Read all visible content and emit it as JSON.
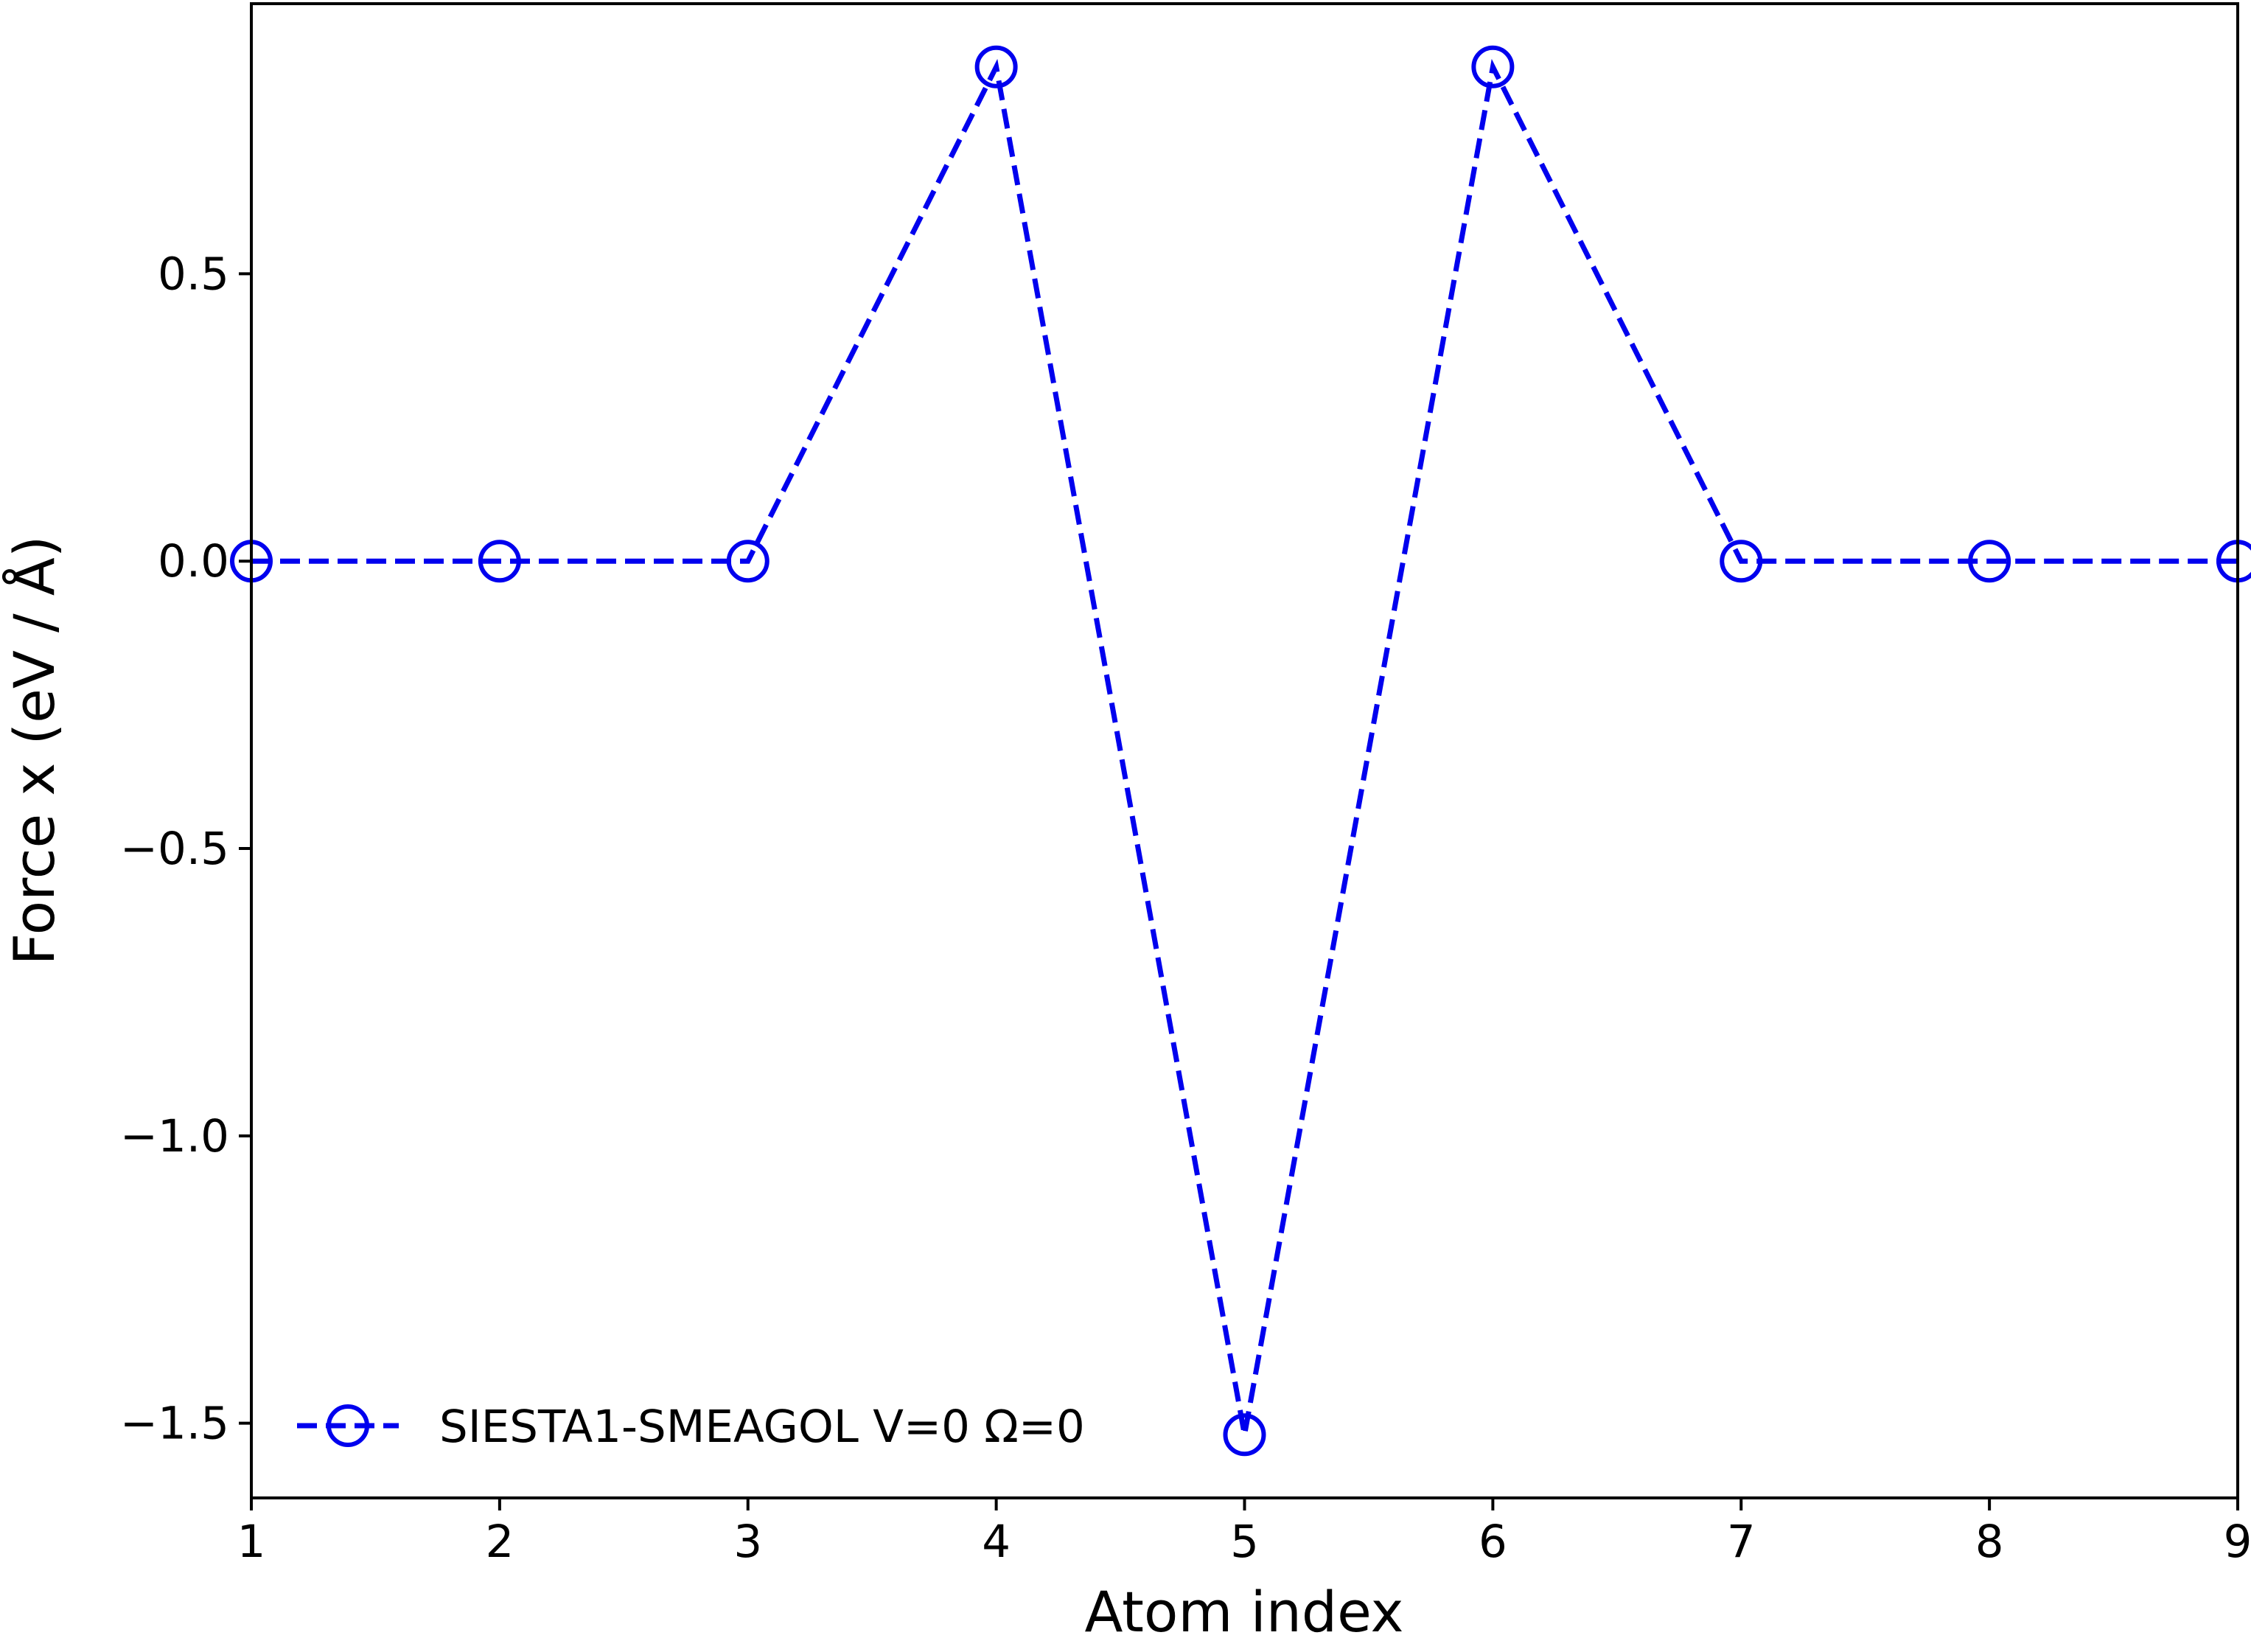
{
  "chart_data": {
    "type": "line",
    "title": "",
    "xlabel": "Atom index",
    "ylabel": "Force x (eV / Å)",
    "xlim": [
      1,
      9
    ],
    "ylim": [
      -1.63,
      0.97
    ],
    "xticks": [
      1,
      2,
      3,
      4,
      5,
      6,
      7,
      8,
      9
    ],
    "xtick_labels": [
      "1",
      "2",
      "3",
      "4",
      "5",
      "6",
      "7",
      "8",
      "9"
    ],
    "yticks": [
      0.5,
      0.0,
      -0.5,
      -1.0,
      -1.5
    ],
    "ytick_labels": [
      "0.5",
      "0.0",
      "−0.5",
      "−1.0",
      "−1.5"
    ],
    "grid": false,
    "legend_position": "lower-left",
    "series": [
      {
        "name": "SIESTA1-SMEAGOL V=0 Ω=0",
        "color": "#0000ee",
        "line_style": "dashed",
        "marker": "open-circle",
        "x": [
          1,
          2,
          3,
          4,
          5,
          6,
          7,
          8,
          9
        ],
        "y": [
          0.0,
          0.0,
          0.0,
          0.86,
          -1.52,
          0.86,
          0.0,
          0.0,
          0.0
        ]
      }
    ]
  }
}
